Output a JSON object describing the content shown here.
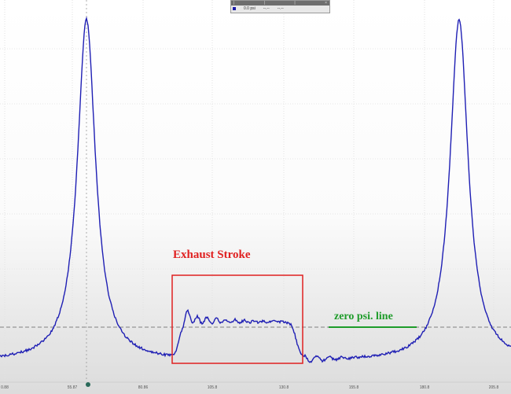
{
  "legend_panel": {
    "channel_value": "0.0 psi",
    "col2": "--.--",
    "col3": "--.--"
  },
  "annotations": {
    "exhaust_stroke": "Exhaust Stroke",
    "zero_line": "zero psi. line"
  },
  "x_axis": {
    "ticks": [
      "0.88",
      "55.87",
      "80.86",
      "105.8",
      "130.8",
      "155.8",
      "180.8",
      "205.8"
    ]
  },
  "colors": {
    "trace": "#1f1fb4",
    "box": "#e02020",
    "zero_label": "#1e9c2a",
    "zero_line": "#808080"
  }
}
